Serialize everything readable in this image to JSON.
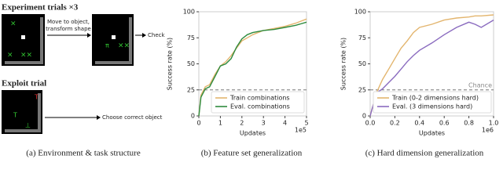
{
  "panel_a": {
    "experiment_title": "Experiment trials ×3",
    "move_line1": "Move to object,",
    "move_line2": "transform shape",
    "check": "Check",
    "exploit_title": "Exploit trial",
    "choose": "Choose correct object",
    "caption": "(a) Environment & task structure"
  },
  "chart_data": [
    {
      "type": "line",
      "caption": "(b) Feature set generalization",
      "xlabel": "Updates",
      "ylabel": "Success rate (%)",
      "x_offset_label": "1e5",
      "x": [
        0,
        0.1,
        0.3,
        0.5,
        0.75,
        1,
        1.25,
        1.5,
        1.75,
        2,
        2.25,
        2.5,
        3,
        3.5,
        4,
        4.5,
        5
      ],
      "series": [
        {
          "name": "Train combinations",
          "color": "#e3b56e",
          "values": [
            0,
            20,
            28,
            30,
            40,
            48,
            52,
            58,
            65,
            72,
            75,
            78,
            82,
            84,
            86,
            89,
            93
          ]
        },
        {
          "name": "Eval. combinations",
          "color": "#2e8b3e",
          "values": [
            0,
            18,
            26,
            28,
            38,
            48,
            50,
            55,
            66,
            74,
            78,
            80,
            82,
            83,
            85,
            87,
            90
          ]
        }
      ],
      "xlim": [
        0,
        5
      ],
      "ylim": [
        0,
        100
      ],
      "xticks": [
        0,
        1,
        2,
        3,
        4,
        5
      ],
      "yticks": [
        0,
        25,
        50,
        75,
        100
      ],
      "reference_line": {
        "value": 25
      },
      "legend": "lower right"
    },
    {
      "type": "line",
      "caption": "(c) Hard dimension generalization",
      "xlabel": "Updates",
      "ylabel": "Success rate (%)",
      "x_offset_label": "1e6",
      "x": [
        0,
        0.05,
        0.1,
        0.15,
        0.2,
        0.25,
        0.3,
        0.35,
        0.4,
        0.5,
        0.6,
        0.7,
        0.8,
        0.85,
        0.9,
        1
      ],
      "series": [
        {
          "name": "Train (0-2 dimensions hard)",
          "color": "#e3b56e",
          "values": [
            0,
            22,
            35,
            45,
            55,
            65,
            72,
            80,
            85,
            88,
            92,
            94,
            95,
            96,
            96,
            97
          ]
        },
        {
          "name": "Eval. (3 dimensions hard)",
          "color": "#8a6bbf",
          "values": [
            0,
            22,
            26,
            32,
            38,
            45,
            52,
            58,
            63,
            70,
            78,
            85,
            90,
            88,
            85,
            92
          ]
        }
      ],
      "xlim": [
        0,
        1
      ],
      "ylim": [
        0,
        100
      ],
      "xticks": [
        {
          "value": 0,
          "label": "0.0"
        },
        {
          "value": 0.2,
          "label": "0.2"
        },
        {
          "value": 0.4,
          "label": "0.4"
        },
        {
          "value": 0.6,
          "label": "0.6"
        },
        {
          "value": 0.8,
          "label": "0.8"
        },
        {
          "value": 1,
          "label": "1.0"
        }
      ],
      "yticks": [
        0,
        25,
        50,
        75,
        100
      ],
      "reference_line": {
        "value": 25,
        "label": "Chance"
      },
      "legend": "lower right"
    }
  ]
}
